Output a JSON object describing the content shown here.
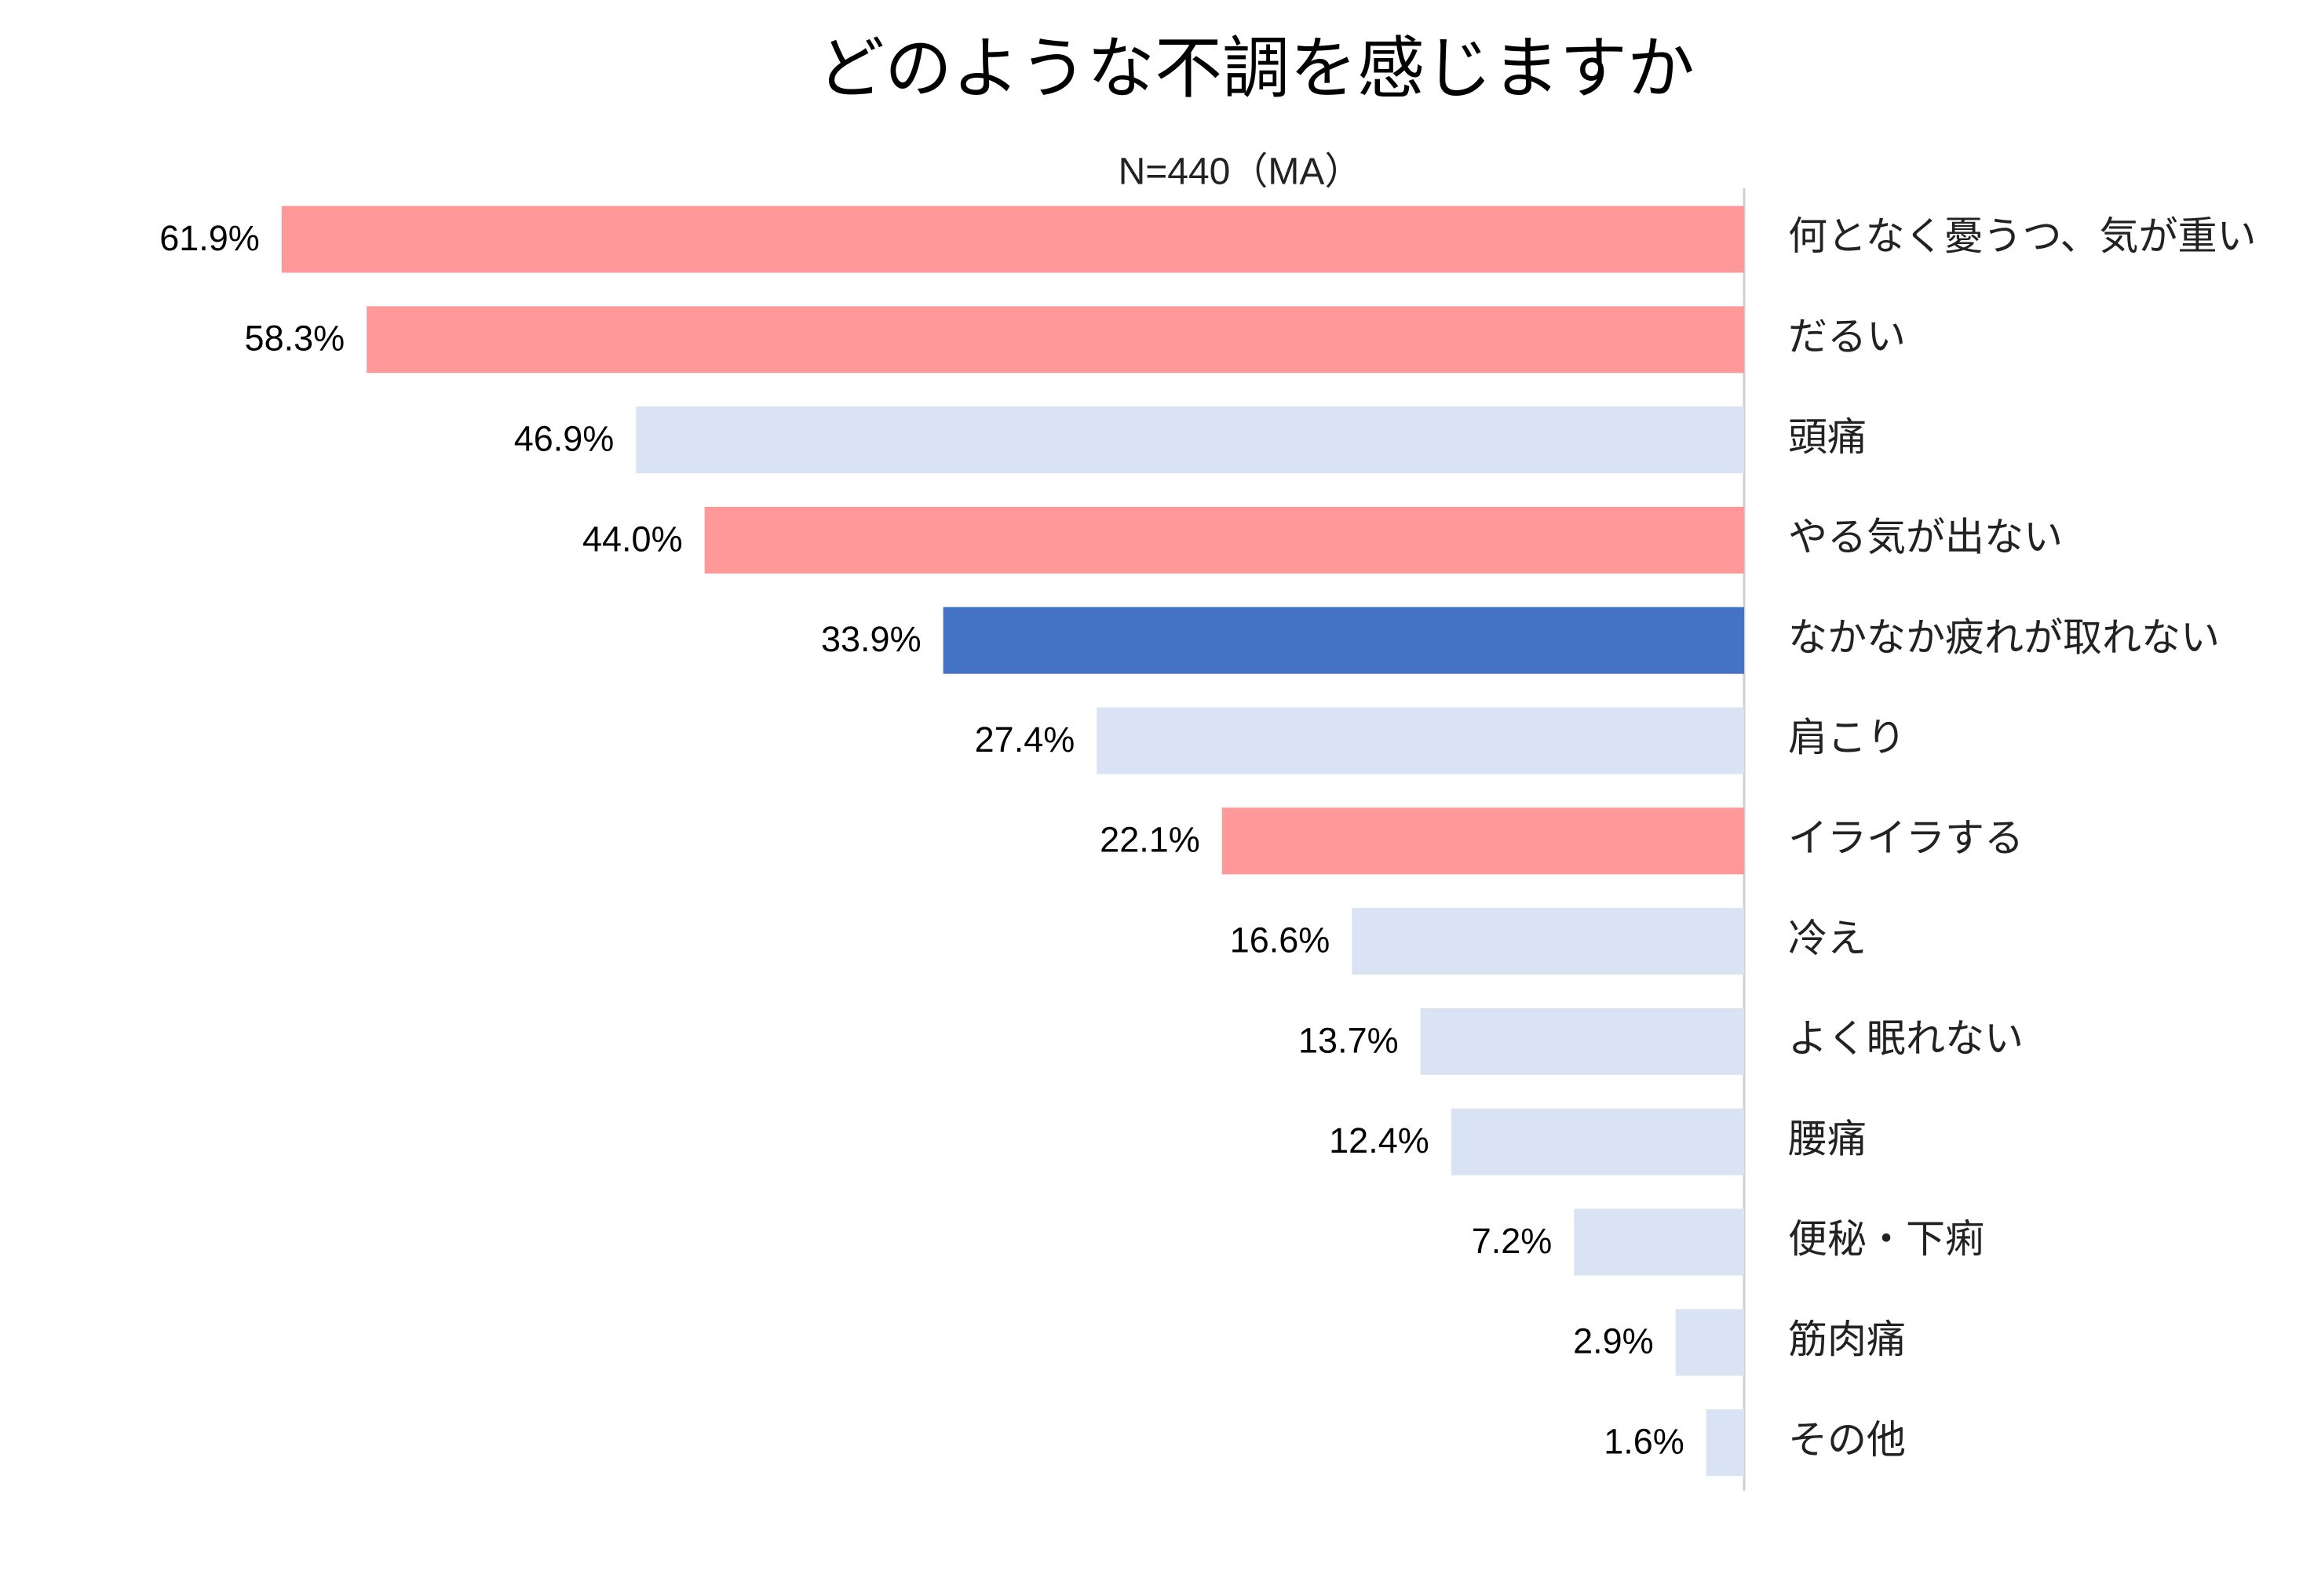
{
  "chart_data": {
    "type": "barh",
    "title": "どのような不調を感じますか",
    "subtitle": "N=440（MA）",
    "categories": [
      "何となく憂うつ、気が重い",
      "だるい",
      "頭痛",
      "やる気が出ない",
      "なかなか疲れが取れない",
      "肩こり",
      "イライラする",
      "冷え",
      "よく眠れない",
      "腰痛",
      "便秘・下痢",
      "筋肉痛",
      "その他"
    ],
    "values": [
      61.9,
      58.3,
      46.9,
      44.0,
      33.9,
      27.4,
      22.1,
      16.6,
      13.7,
      12.4,
      7.2,
      2.9,
      1.6
    ],
    "value_labels": [
      "61.9%",
      "58.3%",
      "46.9%",
      "44.0%",
      "33.9%",
      "27.4%",
      "22.1%",
      "16.6%",
      "13.7%",
      "12.4%",
      "7.2%",
      "2.9%",
      "1.6%"
    ],
    "colors": [
      "#ff9999",
      "#ff9999",
      "#dae3f3",
      "#ff9999",
      "#4472c4",
      "#dae3f3",
      "#ff9999",
      "#dae3f3",
      "#dae3f3",
      "#dae3f3",
      "#dae3f3",
      "#dae3f3",
      "#dae3f3"
    ]
  }
}
